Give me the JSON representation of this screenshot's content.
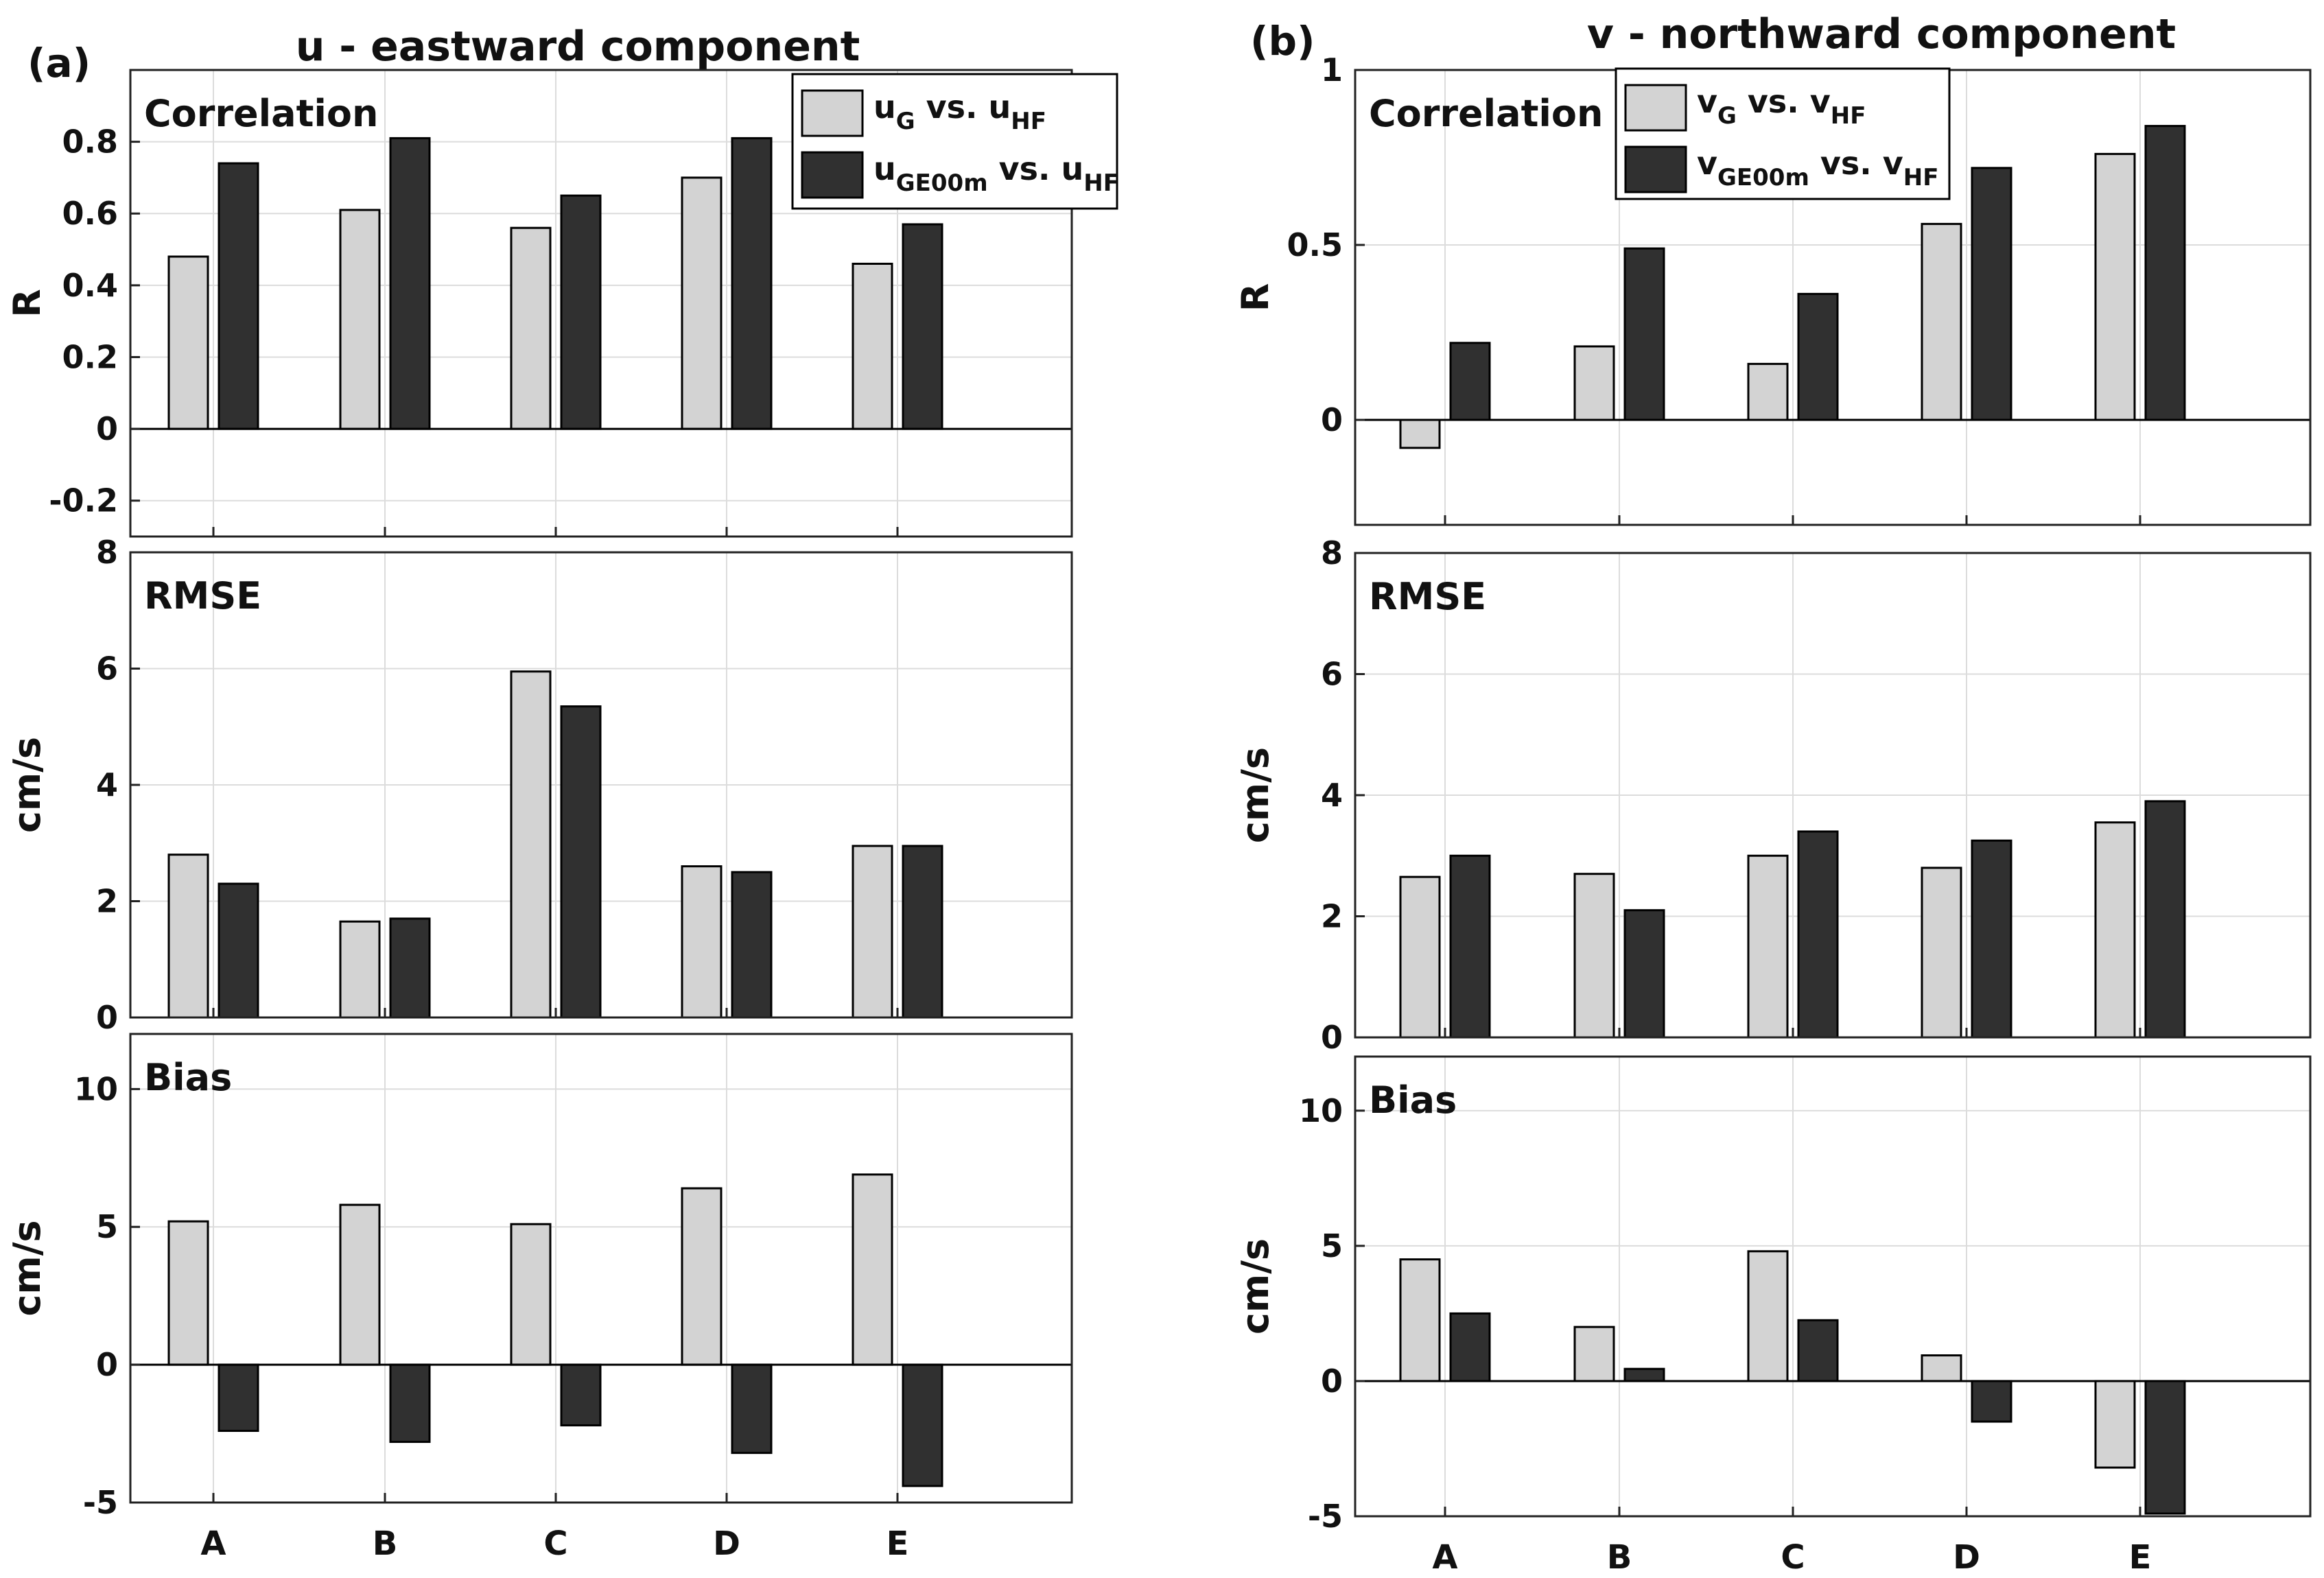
{
  "chart_data": [
    {
      "type": "bar",
      "panel_label": "(a)",
      "title": "u - eastward component",
      "categories": [
        "A",
        "B",
        "C",
        "D",
        "E"
      ],
      "legend": {
        "placement": "top-right",
        "entries": [
          {
            "base": "u",
            "sub": "G",
            "mid": " vs. u",
            "sub2": "HF"
          },
          {
            "base": "u",
            "sub": "GE00m",
            "mid": " vs. u",
            "sub2": "HF"
          }
        ]
      },
      "subplots": [
        {
          "title": "Correlation",
          "ylabel": "R",
          "ylim": [
            -0.3,
            1.0
          ],
          "yticks": [
            -0.2,
            0,
            0.2,
            0.4,
            0.6,
            0.8
          ],
          "yticklabels": [
            "-0.2",
            "0",
            "0.2",
            "0.4",
            "0.6",
            "0.8"
          ],
          "series": [
            {
              "name": "uG vs. uHF",
              "values": [
                0.48,
                0.61,
                0.56,
                0.7,
                0.46
              ]
            },
            {
              "name": "uGE00m vs. uHF",
              "values": [
                0.74,
                0.81,
                0.65,
                0.81,
                0.57
              ]
            }
          ]
        },
        {
          "title": "RMSE",
          "ylabel": "cm/s",
          "ylim": [
            0,
            8
          ],
          "yticks": [
            0,
            2,
            4,
            6,
            8
          ],
          "yticklabels": [
            "0",
            "2",
            "4",
            "6",
            "8"
          ],
          "series": [
            {
              "name": "uG vs. uHF",
              "values": [
                2.8,
                1.65,
                5.95,
                2.6,
                2.95
              ]
            },
            {
              "name": "uGE00m vs. uHF",
              "values": [
                2.3,
                1.7,
                5.35,
                2.5,
                2.95
              ]
            }
          ]
        },
        {
          "title": "Bias",
          "ylabel": "cm/s",
          "ylim": [
            -5,
            12
          ],
          "yticks": [
            -5,
            0,
            5,
            10
          ],
          "yticklabels": [
            "-5",
            "0",
            "5",
            "10"
          ],
          "series": [
            {
              "name": "uG vs. uHF",
              "values": [
                5.2,
                5.8,
                5.1,
                6.4,
                6.9
              ]
            },
            {
              "name": "uGE00m vs. uHF",
              "values": [
                -2.4,
                -2.8,
                -2.2,
                -3.2,
                -4.4
              ]
            }
          ]
        }
      ]
    },
    {
      "type": "bar",
      "panel_label": "(b)",
      "title": "v - northward component",
      "categories": [
        "A",
        "B",
        "C",
        "D",
        "E"
      ],
      "legend": {
        "placement": "top-right",
        "entries": [
          {
            "base": "v",
            "sub": "G",
            "mid": " vs. v",
            "sub2": "HF"
          },
          {
            "base": "v",
            "sub": "GE00m",
            "mid": " vs. v",
            "sub2": "HF"
          }
        ]
      },
      "subplots": [
        {
          "title": "Correlation",
          "ylabel": "R",
          "ylim": [
            -0.3,
            1.0
          ],
          "yticks": [
            0,
            0.5,
            1
          ],
          "yticklabels": [
            "0",
            "0.5",
            "1"
          ],
          "series": [
            {
              "name": "vG vs. vHF",
              "values": [
                -0.08,
                0.21,
                0.16,
                0.56,
                0.76
              ]
            },
            {
              "name": "vGE00m vs. vHF",
              "values": [
                0.22,
                0.49,
                0.36,
                0.72,
                0.84
              ]
            }
          ]
        },
        {
          "title": "RMSE",
          "ylabel": "cm/s",
          "ylim": [
            0,
            8
          ],
          "yticks": [
            0,
            2,
            4,
            6,
            8
          ],
          "yticklabels": [
            "0",
            "2",
            "4",
            "6",
            "8"
          ],
          "series": [
            {
              "name": "vG vs. vHF",
              "values": [
                2.65,
                2.7,
                3.0,
                2.8,
                3.55
              ]
            },
            {
              "name": "vGE00m vs. vHF",
              "values": [
                3.0,
                2.1,
                3.4,
                3.25,
                3.9
              ]
            }
          ]
        },
        {
          "title": "Bias",
          "ylabel": "cm/s",
          "ylim": [
            -5,
            12
          ],
          "yticks": [
            -5,
            0,
            5,
            10
          ],
          "yticklabels": [
            "-5",
            "0",
            "5",
            "10"
          ],
          "series": [
            {
              "name": "vG vs. vHF",
              "values": [
                4.5,
                2.0,
                4.8,
                0.95,
                -3.2
              ]
            },
            {
              "name": "vGE00m vs. vHF",
              "values": [
                2.5,
                0.45,
                2.25,
                -1.5,
                -4.9
              ]
            }
          ]
        }
      ]
    }
  ],
  "colors": {
    "series1": "#d3d3d3",
    "series2": "#303030",
    "grid": "#dcdcdc",
    "axis": "#222222"
  }
}
